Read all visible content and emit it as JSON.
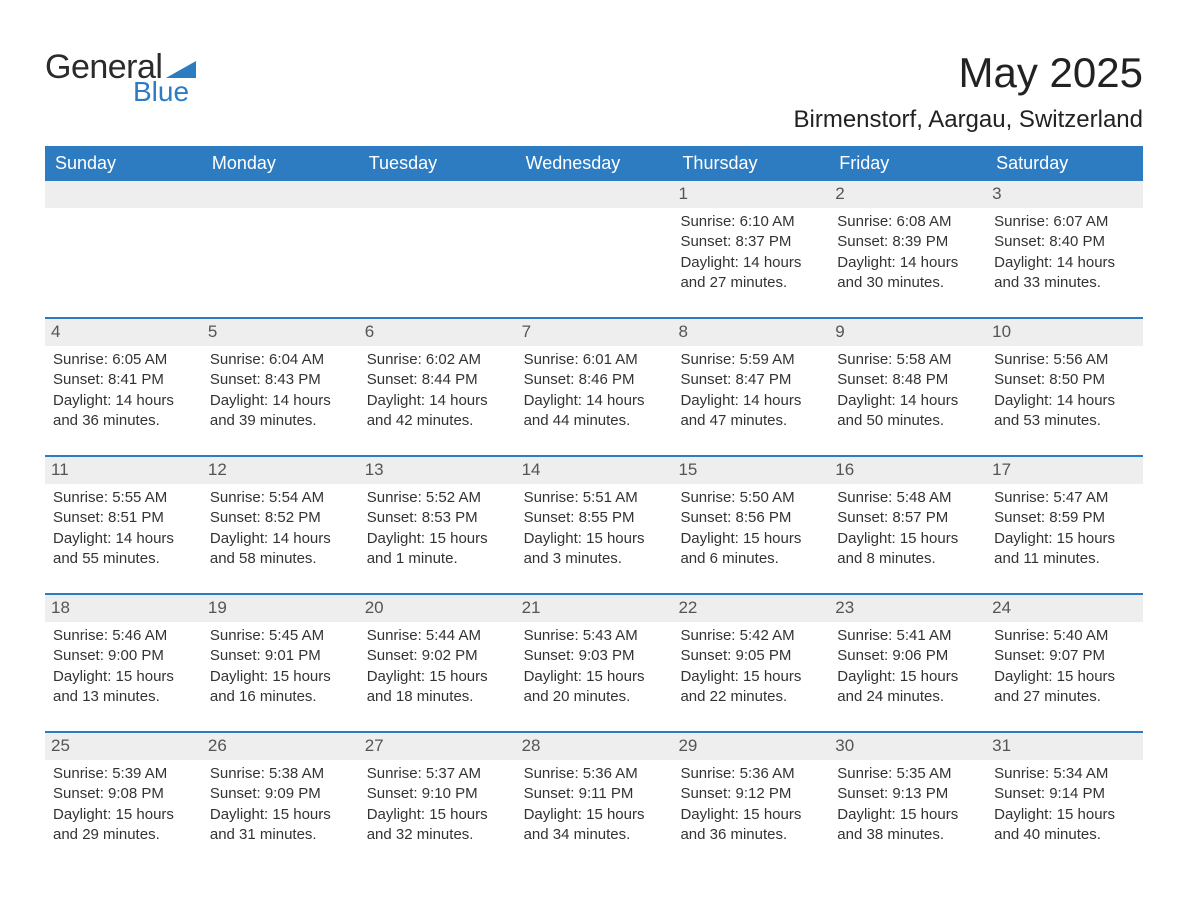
{
  "logo": {
    "text_general": "General",
    "text_blue": "Blue",
    "mark_color": "#2d7cc1"
  },
  "title": "May 2025",
  "location": "Birmenstorf, Aargau, Switzerland",
  "colors": {
    "header_bg": "#2d7cc1",
    "header_text": "#ffffff",
    "row_divider": "#2d7cc1",
    "daynum_bg": "#eeeeee",
    "body_text": "#333333",
    "page_bg": "#ffffff"
  },
  "weekdays": [
    "Sunday",
    "Monday",
    "Tuesday",
    "Wednesday",
    "Thursday",
    "Friday",
    "Saturday"
  ],
  "weeks": [
    [
      {
        "empty": true
      },
      {
        "empty": true
      },
      {
        "empty": true
      },
      {
        "empty": true
      },
      {
        "day": "1",
        "sunrise": "Sunrise: 6:10 AM",
        "sunset": "Sunset: 8:37 PM",
        "daylight": "Daylight: 14 hours and 27 minutes."
      },
      {
        "day": "2",
        "sunrise": "Sunrise: 6:08 AM",
        "sunset": "Sunset: 8:39 PM",
        "daylight": "Daylight: 14 hours and 30 minutes."
      },
      {
        "day": "3",
        "sunrise": "Sunrise: 6:07 AM",
        "sunset": "Sunset: 8:40 PM",
        "daylight": "Daylight: 14 hours and 33 minutes."
      }
    ],
    [
      {
        "day": "4",
        "sunrise": "Sunrise: 6:05 AM",
        "sunset": "Sunset: 8:41 PM",
        "daylight": "Daylight: 14 hours and 36 minutes."
      },
      {
        "day": "5",
        "sunrise": "Sunrise: 6:04 AM",
        "sunset": "Sunset: 8:43 PM",
        "daylight": "Daylight: 14 hours and 39 minutes."
      },
      {
        "day": "6",
        "sunrise": "Sunrise: 6:02 AM",
        "sunset": "Sunset: 8:44 PM",
        "daylight": "Daylight: 14 hours and 42 minutes."
      },
      {
        "day": "7",
        "sunrise": "Sunrise: 6:01 AM",
        "sunset": "Sunset: 8:46 PM",
        "daylight": "Daylight: 14 hours and 44 minutes."
      },
      {
        "day": "8",
        "sunrise": "Sunrise: 5:59 AM",
        "sunset": "Sunset: 8:47 PM",
        "daylight": "Daylight: 14 hours and 47 minutes."
      },
      {
        "day": "9",
        "sunrise": "Sunrise: 5:58 AM",
        "sunset": "Sunset: 8:48 PM",
        "daylight": "Daylight: 14 hours and 50 minutes."
      },
      {
        "day": "10",
        "sunrise": "Sunrise: 5:56 AM",
        "sunset": "Sunset: 8:50 PM",
        "daylight": "Daylight: 14 hours and 53 minutes."
      }
    ],
    [
      {
        "day": "11",
        "sunrise": "Sunrise: 5:55 AM",
        "sunset": "Sunset: 8:51 PM",
        "daylight": "Daylight: 14 hours and 55 minutes."
      },
      {
        "day": "12",
        "sunrise": "Sunrise: 5:54 AM",
        "sunset": "Sunset: 8:52 PM",
        "daylight": "Daylight: 14 hours and 58 minutes."
      },
      {
        "day": "13",
        "sunrise": "Sunrise: 5:52 AM",
        "sunset": "Sunset: 8:53 PM",
        "daylight": "Daylight: 15 hours and 1 minute."
      },
      {
        "day": "14",
        "sunrise": "Sunrise: 5:51 AM",
        "sunset": "Sunset: 8:55 PM",
        "daylight": "Daylight: 15 hours and 3 minutes."
      },
      {
        "day": "15",
        "sunrise": "Sunrise: 5:50 AM",
        "sunset": "Sunset: 8:56 PM",
        "daylight": "Daylight: 15 hours and 6 minutes."
      },
      {
        "day": "16",
        "sunrise": "Sunrise: 5:48 AM",
        "sunset": "Sunset: 8:57 PM",
        "daylight": "Daylight: 15 hours and 8 minutes."
      },
      {
        "day": "17",
        "sunrise": "Sunrise: 5:47 AM",
        "sunset": "Sunset: 8:59 PM",
        "daylight": "Daylight: 15 hours and 11 minutes."
      }
    ],
    [
      {
        "day": "18",
        "sunrise": "Sunrise: 5:46 AM",
        "sunset": "Sunset: 9:00 PM",
        "daylight": "Daylight: 15 hours and 13 minutes."
      },
      {
        "day": "19",
        "sunrise": "Sunrise: 5:45 AM",
        "sunset": "Sunset: 9:01 PM",
        "daylight": "Daylight: 15 hours and 16 minutes."
      },
      {
        "day": "20",
        "sunrise": "Sunrise: 5:44 AM",
        "sunset": "Sunset: 9:02 PM",
        "daylight": "Daylight: 15 hours and 18 minutes."
      },
      {
        "day": "21",
        "sunrise": "Sunrise: 5:43 AM",
        "sunset": "Sunset: 9:03 PM",
        "daylight": "Daylight: 15 hours and 20 minutes."
      },
      {
        "day": "22",
        "sunrise": "Sunrise: 5:42 AM",
        "sunset": "Sunset: 9:05 PM",
        "daylight": "Daylight: 15 hours and 22 minutes."
      },
      {
        "day": "23",
        "sunrise": "Sunrise: 5:41 AM",
        "sunset": "Sunset: 9:06 PM",
        "daylight": "Daylight: 15 hours and 24 minutes."
      },
      {
        "day": "24",
        "sunrise": "Sunrise: 5:40 AM",
        "sunset": "Sunset: 9:07 PM",
        "daylight": "Daylight: 15 hours and 27 minutes."
      }
    ],
    [
      {
        "day": "25",
        "sunrise": "Sunrise: 5:39 AM",
        "sunset": "Sunset: 9:08 PM",
        "daylight": "Daylight: 15 hours and 29 minutes."
      },
      {
        "day": "26",
        "sunrise": "Sunrise: 5:38 AM",
        "sunset": "Sunset: 9:09 PM",
        "daylight": "Daylight: 15 hours and 31 minutes."
      },
      {
        "day": "27",
        "sunrise": "Sunrise: 5:37 AM",
        "sunset": "Sunset: 9:10 PM",
        "daylight": "Daylight: 15 hours and 32 minutes."
      },
      {
        "day": "28",
        "sunrise": "Sunrise: 5:36 AM",
        "sunset": "Sunset: 9:11 PM",
        "daylight": "Daylight: 15 hours and 34 minutes."
      },
      {
        "day": "29",
        "sunrise": "Sunrise: 5:36 AM",
        "sunset": "Sunset: 9:12 PM",
        "daylight": "Daylight: 15 hours and 36 minutes."
      },
      {
        "day": "30",
        "sunrise": "Sunrise: 5:35 AM",
        "sunset": "Sunset: 9:13 PM",
        "daylight": "Daylight: 15 hours and 38 minutes."
      },
      {
        "day": "31",
        "sunrise": "Sunrise: 5:34 AM",
        "sunset": "Sunset: 9:14 PM",
        "daylight": "Daylight: 15 hours and 40 minutes."
      }
    ]
  ]
}
